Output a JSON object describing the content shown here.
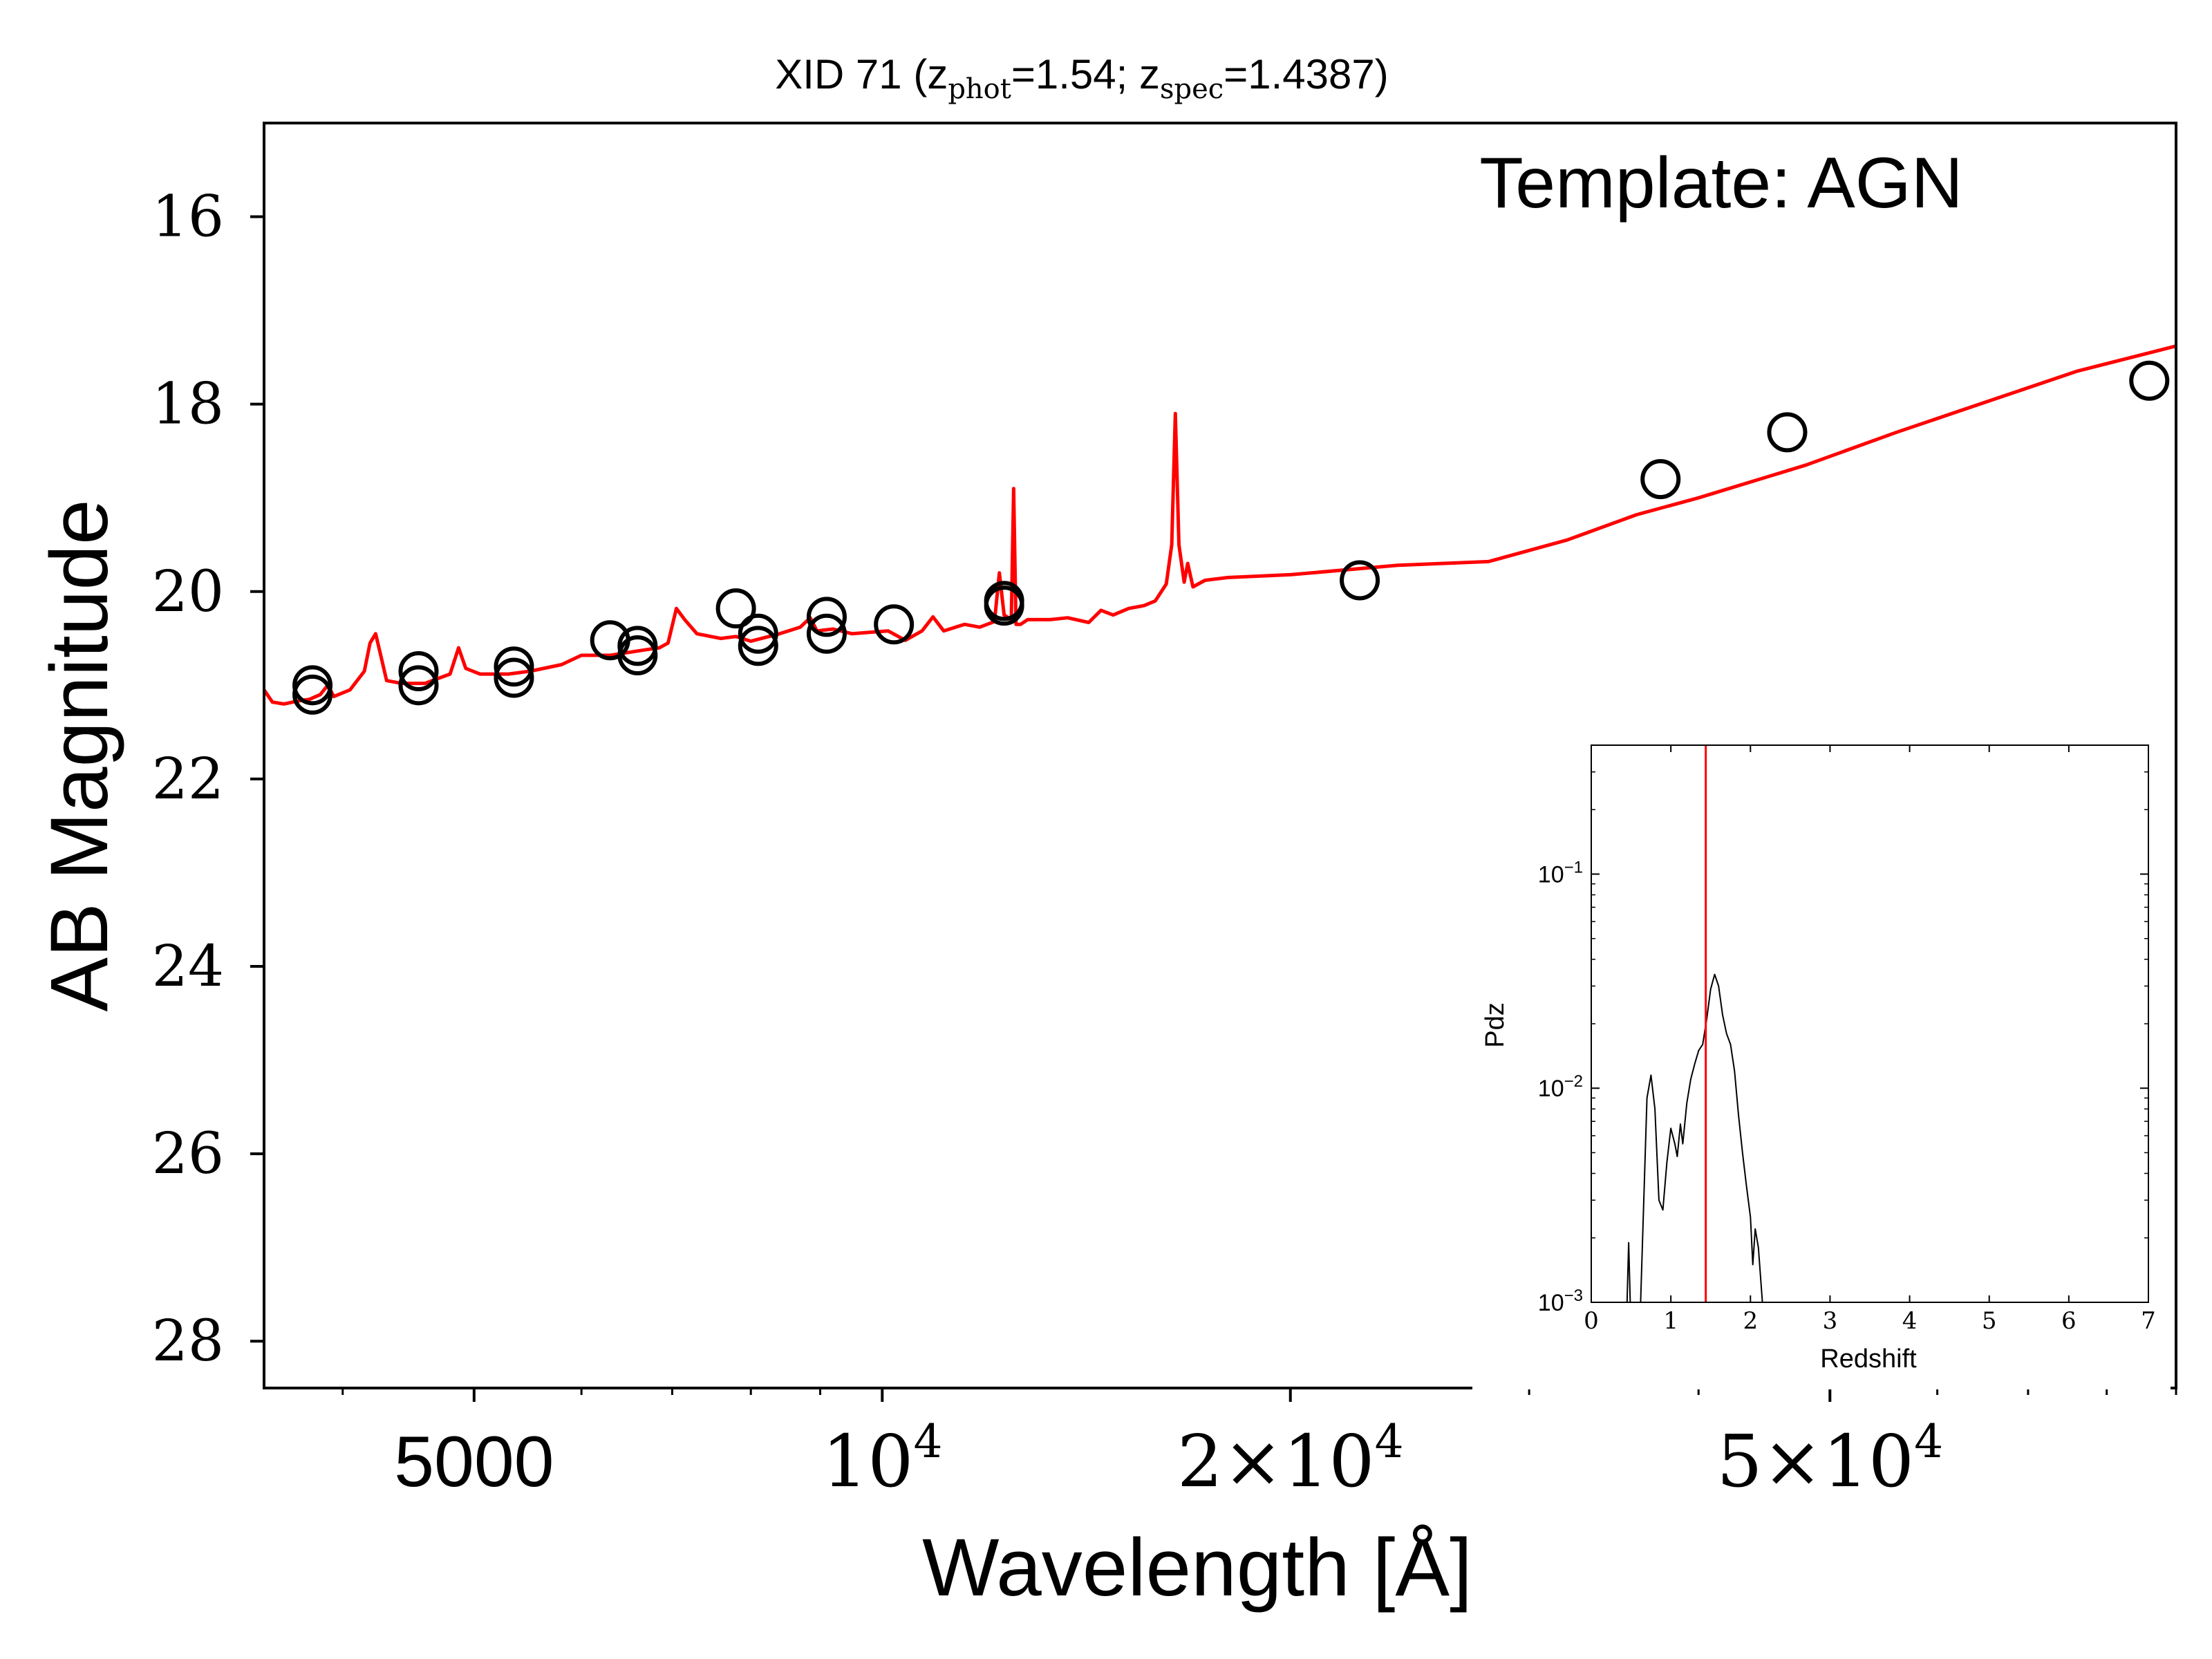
{
  "chart_data": [
    {
      "type": "scatter",
      "title_main": "XID 71 (z",
      "title_sub1": "phot",
      "title_mid": "=1.54; z",
      "title_sub2": "spec",
      "title_end": "=1.4387)",
      "annotation": "Template: AGN",
      "xlabel": "Wavelength [Å]",
      "ylabel": "AB Magnitude",
      "xscale": "log",
      "xlim": [
        3500,
        90000
      ],
      "ylim": [
        28.5,
        15
      ],
      "y_inverted": true,
      "xticks": [
        {
          "value": 5000,
          "base": "5000",
          "exp": ""
        },
        {
          "value": 10000,
          "base": "10",
          "exp": "4"
        },
        {
          "value": 20000,
          "base": "2×10",
          "exp": "4"
        },
        {
          "value": 50000,
          "base": "5×10",
          "exp": "4"
        }
      ],
      "xticks_minor": [
        4000,
        6000,
        7000,
        8000,
        9000,
        30000,
        40000,
        60000,
        70000,
        80000,
        90000
      ],
      "yticks": [
        {
          "value": 16,
          "label": "16"
        },
        {
          "value": 18,
          "label": "18"
        },
        {
          "value": 20,
          "label": "20"
        },
        {
          "value": 22,
          "label": "22"
        },
        {
          "value": 24,
          "label": "24"
        },
        {
          "value": 26,
          "label": "26"
        },
        {
          "value": 28,
          "label": "28"
        }
      ],
      "series": [
        {
          "kind": "points",
          "color": "#000000",
          "marker": "open-circle",
          "points": [
            [
              3800,
              21.0
            ],
            [
              3800,
              21.1
            ],
            [
              4550,
              20.85
            ],
            [
              4550,
              21.0
            ],
            [
              5350,
              20.8
            ],
            [
              5350,
              20.92
            ],
            [
              6300,
              20.52
            ],
            [
              6600,
              20.58
            ],
            [
              6600,
              20.68
            ],
            [
              7800,
              20.18
            ],
            [
              8100,
              20.45
            ],
            [
              8100,
              20.58
            ],
            [
              9100,
              20.27
            ],
            [
              9100,
              20.45
            ],
            [
              10200,
              20.35
            ],
            [
              12300,
              20.1
            ],
            [
              12300,
              20.15
            ],
            [
              22500,
              19.88
            ],
            [
              37500,
              18.8
            ],
            [
              46500,
              18.3
            ],
            [
              86000,
              17.75
            ]
          ]
        },
        {
          "kind": "line",
          "color": "#ff0000",
          "points": [
            [
              3500,
              21.05
            ],
            [
              3550,
              21.18
            ],
            [
              3620,
              21.2
            ],
            [
              3700,
              21.17
            ],
            [
              3780,
              21.15
            ],
            [
              3850,
              21.1
            ],
            [
              3900,
              21.0
            ],
            [
              3940,
              21.12
            ],
            [
              4050,
              21.05
            ],
            [
              4150,
              20.85
            ],
            [
              4190,
              20.55
            ],
            [
              4230,
              20.45
            ],
            [
              4270,
              20.7
            ],
            [
              4310,
              20.95
            ],
            [
              4420,
              20.98
            ],
            [
              4600,
              20.98
            ],
            [
              4800,
              20.88
            ],
            [
              4870,
              20.6
            ],
            [
              4930,
              20.82
            ],
            [
              5050,
              20.88
            ],
            [
              5300,
              20.88
            ],
            [
              5500,
              20.85
            ],
            [
              5800,
              20.78
            ],
            [
              6000,
              20.68
            ],
            [
              6300,
              20.68
            ],
            [
              6700,
              20.62
            ],
            [
              6850,
              20.6
            ],
            [
              6950,
              20.55
            ],
            [
              7050,
              20.18
            ],
            [
              7150,
              20.3
            ],
            [
              7300,
              20.45
            ],
            [
              7600,
              20.5
            ],
            [
              7800,
              20.48
            ],
            [
              8000,
              20.53
            ],
            [
              8400,
              20.45
            ],
            [
              8700,
              20.38
            ],
            [
              8850,
              20.28
            ],
            [
              8950,
              20.42
            ],
            [
              9200,
              20.4
            ],
            [
              9500,
              20.45
            ],
            [
              10100,
              20.42
            ],
            [
              10400,
              20.52
            ],
            [
              10700,
              20.42
            ],
            [
              10900,
              20.27
            ],
            [
              11100,
              20.42
            ],
            [
              11500,
              20.35
            ],
            [
              11800,
              20.38
            ],
            [
              12100,
              20.32
            ],
            [
              12200,
              19.8
            ],
            [
              12300,
              20.25
            ],
            [
              12450,
              20.3
            ],
            [
              12500,
              18.9
            ],
            [
              12550,
              20.35
            ],
            [
              12650,
              20.35
            ],
            [
              12800,
              20.3
            ],
            [
              13300,
              20.3
            ],
            [
              13700,
              20.28
            ],
            [
              14200,
              20.33
            ],
            [
              14500,
              20.2
            ],
            [
              14800,
              20.25
            ],
            [
              15200,
              20.18
            ],
            [
              15600,
              20.15
            ],
            [
              15900,
              20.1
            ],
            [
              16200,
              19.92
            ],
            [
              16350,
              19.5
            ],
            [
              16450,
              18.1
            ],
            [
              16550,
              19.5
            ],
            [
              16700,
              19.9
            ],
            [
              16800,
              19.7
            ],
            [
              16950,
              19.95
            ],
            [
              17300,
              19.88
            ],
            [
              18000,
              19.85
            ],
            [
              20000,
              19.82
            ],
            [
              24000,
              19.72
            ],
            [
              28000,
              19.68
            ],
            [
              32000,
              19.45
            ],
            [
              36000,
              19.18
            ],
            [
              40000,
              19.0
            ],
            [
              48000,
              18.65
            ],
            [
              56000,
              18.3
            ],
            [
              66000,
              17.95
            ],
            [
              76000,
              17.65
            ],
            [
              90000,
              17.38
            ]
          ]
        }
      ]
    },
    {
      "type": "line",
      "xlabel": "Redshift",
      "ylabel": "Pdz",
      "yscale": "log",
      "xlim": [
        0,
        7
      ],
      "ylim": [
        0.001,
        0.4
      ],
      "xticks": [
        {
          "value": 0,
          "label": "0"
        },
        {
          "value": 1,
          "label": "1"
        },
        {
          "value": 2,
          "label": "2"
        },
        {
          "value": 3,
          "label": "3"
        },
        {
          "value": 4,
          "label": "4"
        },
        {
          "value": 5,
          "label": "5"
        },
        {
          "value": 6,
          "label": "6"
        },
        {
          "value": 7,
          "label": "7"
        }
      ],
      "yticks": [
        {
          "value": 0.001,
          "base": "10",
          "exp": "−3"
        },
        {
          "value": 0.01,
          "base": "10",
          "exp": "−2"
        },
        {
          "value": 0.1,
          "base": "10",
          "exp": "−1"
        }
      ],
      "marker_line": {
        "x": 1.4387,
        "color": "#ff0000"
      },
      "series": [
        {
          "kind": "line",
          "color": "#000000",
          "points": [
            [
              0.45,
              0.001
            ],
            [
              0.47,
              0.0019
            ],
            [
              0.49,
              0.001
            ],
            [
              0.62,
              0.001
            ],
            [
              0.66,
              0.003
            ],
            [
              0.7,
              0.009
            ],
            [
              0.75,
              0.0115
            ],
            [
              0.8,
              0.008
            ],
            [
              0.85,
              0.003
            ],
            [
              0.9,
              0.0027
            ],
            [
              0.95,
              0.0045
            ],
            [
              1.0,
              0.0065
            ],
            [
              1.05,
              0.0055
            ],
            [
              1.08,
              0.0048
            ],
            [
              1.12,
              0.0068
            ],
            [
              1.15,
              0.0055
            ],
            [
              1.2,
              0.0085
            ],
            [
              1.25,
              0.011
            ],
            [
              1.3,
              0.013
            ],
            [
              1.35,
              0.015
            ],
            [
              1.4,
              0.016
            ],
            [
              1.45,
              0.021
            ],
            [
              1.5,
              0.029
            ],
            [
              1.55,
              0.034
            ],
            [
              1.6,
              0.03
            ],
            [
              1.65,
              0.022
            ],
            [
              1.7,
              0.018
            ],
            [
              1.75,
              0.016
            ],
            [
              1.8,
              0.012
            ],
            [
              1.85,
              0.0075
            ],
            [
              1.9,
              0.005
            ],
            [
              1.95,
              0.0035
            ],
            [
              2.0,
              0.0025
            ],
            [
              2.03,
              0.0015
            ],
            [
              2.06,
              0.0022
            ],
            [
              2.1,
              0.0018
            ],
            [
              2.15,
              0.001
            ]
          ]
        }
      ]
    }
  ]
}
